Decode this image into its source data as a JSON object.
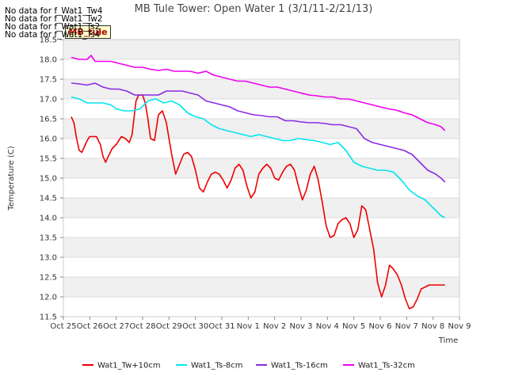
{
  "notes": [
    "No data for f_Wat1_Tw4",
    "No data for f_Wat1_Tw2",
    "No data for f_Wat1_Ts2",
    "No data for f_Wat1_Ts4"
  ],
  "badge": "MB_tule",
  "chart_data": {
    "type": "line",
    "title": "MB Tule Tower: Open Water 1 (3/1/11-2/21/13)",
    "xlabel": "Time",
    "ylabel": "Temperature (C)",
    "ylim": [
      11.5,
      18.5
    ],
    "xlim": [
      0,
      15
    ],
    "yticks": [
      11.5,
      12.0,
      12.5,
      13.0,
      13.5,
      14.0,
      14.5,
      15.0,
      15.5,
      16.0,
      16.5,
      17.0,
      17.5,
      18.0,
      18.5
    ],
    "ytick_labels": [
      "11.5",
      "12.0",
      "12.5",
      "13.0",
      "13.5",
      "14.0",
      "14.5",
      "15.0",
      "15.5",
      "16.0",
      "16.5",
      "17.0",
      "17.5",
      "18.0",
      "18.5"
    ],
    "xticks": [
      0,
      1,
      2,
      3,
      4,
      5,
      6,
      7,
      8,
      9,
      10,
      11,
      12,
      13,
      14,
      15
    ],
    "xtick_labels": [
      "Oct 25",
      "Oct 26",
      "Oct 27",
      "Oct 28",
      "Oct 29",
      "Oct 30",
      "Oct 31",
      "Nov 1",
      "Nov 2",
      "Nov 3",
      "Nov 4",
      "Nov 5",
      "Nov 6",
      "Nov 7",
      "Nov 8",
      "Nov 9"
    ],
    "grid": true,
    "legend_position": "bottom",
    "series": [
      {
        "name": "Wat1_Tw+10cm",
        "color": "#ee0000",
        "x": [
          0.3,
          0.4,
          0.5,
          0.6,
          0.7,
          0.8,
          0.9,
          1.0,
          1.1,
          1.25,
          1.4,
          1.5,
          1.6,
          1.7,
          1.85,
          2.0,
          2.1,
          2.2,
          2.35,
          2.5,
          2.6,
          2.75,
          2.85,
          3.0,
          3.1,
          3.2,
          3.3,
          3.45,
          3.6,
          3.75,
          3.9,
          4.0,
          4.1,
          4.25,
          4.4,
          4.55,
          4.7,
          4.85,
          5.0,
          5.15,
          5.3,
          5.45,
          5.6,
          5.75,
          5.9,
          6.05,
          6.2,
          6.35,
          6.5,
          6.65,
          6.8,
          6.95,
          7.1,
          7.25,
          7.4,
          7.55,
          7.7,
          7.85,
          8.0,
          8.15,
          8.3,
          8.45,
          8.6,
          8.75,
          8.9,
          9.05,
          9.2,
          9.35,
          9.5,
          9.65,
          9.8,
          9.95,
          10.1,
          10.25,
          10.4,
          10.55,
          10.7,
          10.85,
          11.0,
          11.15,
          11.3,
          11.45,
          11.6,
          11.75,
          11.9,
          12.05,
          12.2,
          12.35,
          12.5,
          12.65,
          12.8,
          12.95,
          13.1,
          13.25,
          13.4,
          13.55,
          13.7,
          13.85,
          14.0,
          14.15,
          14.3,
          14.45
        ],
        "values": [
          16.55,
          16.4,
          16.0,
          15.7,
          15.65,
          15.8,
          15.95,
          16.05,
          16.05,
          16.05,
          15.85,
          15.55,
          15.4,
          15.55,
          15.75,
          15.85,
          15.95,
          16.05,
          16.0,
          15.9,
          16.1,
          16.95,
          17.1,
          17.1,
          16.9,
          16.5,
          16.0,
          15.95,
          16.6,
          16.7,
          16.4,
          16.0,
          15.6,
          15.1,
          15.35,
          15.6,
          15.65,
          15.55,
          15.2,
          14.75,
          14.65,
          14.9,
          15.1,
          15.15,
          15.1,
          14.95,
          14.75,
          14.95,
          15.25,
          15.35,
          15.2,
          14.8,
          14.5,
          14.65,
          15.1,
          15.25,
          15.35,
          15.25,
          15.0,
          14.95,
          15.15,
          15.3,
          15.35,
          15.2,
          14.8,
          14.45,
          14.7,
          15.1,
          15.3,
          14.95,
          14.4,
          13.8,
          13.5,
          13.55,
          13.85,
          13.95,
          14.0,
          13.85,
          13.5,
          13.7,
          14.3,
          14.2,
          13.7,
          13.2,
          12.35,
          12.0,
          12.3,
          12.8,
          12.7,
          12.55,
          12.3,
          11.95,
          11.7,
          11.75,
          11.95,
          12.2,
          12.25,
          12.3,
          12.3,
          12.3,
          12.3,
          12.3
        ]
      },
      {
        "name": "Wat1_Ts-8cm",
        "color": "#00e5ee",
        "x": [
          0.3,
          0.6,
          0.9,
          1.2,
          1.5,
          1.8,
          2.0,
          2.3,
          2.6,
          2.9,
          3.2,
          3.5,
          3.8,
          4.1,
          4.4,
          4.7,
          5.0,
          5.3,
          5.6,
          5.9,
          6.2,
          6.5,
          6.8,
          7.1,
          7.4,
          7.7,
          8.0,
          8.3,
          8.6,
          8.9,
          9.2,
          9.5,
          9.8,
          10.1,
          10.4,
          10.7,
          11.0,
          11.3,
          11.6,
          11.9,
          12.2,
          12.5,
          12.8,
          13.1,
          13.4,
          13.7,
          14.0,
          14.3,
          14.45
        ],
        "values": [
          17.05,
          17.0,
          16.9,
          16.9,
          16.9,
          16.85,
          16.75,
          16.7,
          16.7,
          16.75,
          16.95,
          17.0,
          16.9,
          16.95,
          16.85,
          16.65,
          16.55,
          16.5,
          16.35,
          16.25,
          16.2,
          16.15,
          16.1,
          16.05,
          16.1,
          16.05,
          16.0,
          15.95,
          15.95,
          16.0,
          15.97,
          15.95,
          15.9,
          15.85,
          15.9,
          15.7,
          15.4,
          15.3,
          15.25,
          15.2,
          15.2,
          15.15,
          14.95,
          14.7,
          14.55,
          14.45,
          14.25,
          14.05,
          14.0
        ]
      },
      {
        "name": "Wat1_Ts-16cm",
        "color": "#8a2be2",
        "x": [
          0.3,
          0.6,
          0.9,
          1.2,
          1.5,
          1.8,
          2.1,
          2.4,
          2.7,
          3.0,
          3.3,
          3.6,
          3.9,
          4.2,
          4.5,
          4.8,
          5.1,
          5.4,
          5.7,
          6.0,
          6.3,
          6.6,
          6.9,
          7.2,
          7.5,
          7.8,
          8.1,
          8.4,
          8.7,
          9.0,
          9.3,
          9.6,
          9.9,
          10.2,
          10.5,
          10.8,
          11.1,
          11.4,
          11.7,
          12.0,
          12.3,
          12.6,
          12.9,
          13.2,
          13.5,
          13.8,
          14.1,
          14.3,
          14.45
        ],
        "values": [
          17.4,
          17.38,
          17.35,
          17.4,
          17.3,
          17.25,
          17.25,
          17.2,
          17.1,
          17.1,
          17.1,
          17.1,
          17.2,
          17.2,
          17.2,
          17.15,
          17.1,
          16.95,
          16.9,
          16.85,
          16.8,
          16.7,
          16.65,
          16.6,
          16.58,
          16.55,
          16.55,
          16.45,
          16.45,
          16.42,
          16.4,
          16.4,
          16.38,
          16.35,
          16.35,
          16.3,
          16.25,
          16.0,
          15.9,
          15.85,
          15.8,
          15.75,
          15.7,
          15.6,
          15.4,
          15.2,
          15.1,
          15.0,
          14.9
        ]
      },
      {
        "name": "Wat1_Ts-32cm",
        "color": "#ee00ee",
        "x": [
          0.3,
          0.6,
          0.9,
          1.05,
          1.2,
          1.5,
          1.8,
          2.1,
          2.4,
          2.7,
          3.0,
          3.3,
          3.6,
          3.9,
          4.2,
          4.5,
          4.8,
          5.1,
          5.4,
          5.7,
          6.0,
          6.3,
          6.6,
          6.9,
          7.2,
          7.5,
          7.8,
          8.1,
          8.4,
          8.7,
          9.0,
          9.3,
          9.6,
          9.9,
          10.2,
          10.5,
          10.8,
          11.1,
          11.4,
          11.7,
          12.0,
          12.3,
          12.6,
          12.9,
          13.2,
          13.5,
          13.8,
          14.1,
          14.3,
          14.45
        ],
        "values": [
          18.05,
          18.0,
          18.0,
          18.1,
          17.95,
          17.95,
          17.95,
          17.9,
          17.85,
          17.8,
          17.8,
          17.75,
          17.72,
          17.75,
          17.7,
          17.7,
          17.7,
          17.65,
          17.7,
          17.6,
          17.55,
          17.5,
          17.45,
          17.45,
          17.4,
          17.35,
          17.3,
          17.3,
          17.25,
          17.2,
          17.15,
          17.1,
          17.08,
          17.05,
          17.05,
          17.0,
          17.0,
          16.95,
          16.9,
          16.85,
          16.8,
          16.75,
          16.72,
          16.65,
          16.6,
          16.5,
          16.4,
          16.35,
          16.3,
          16.2
        ]
      }
    ]
  }
}
